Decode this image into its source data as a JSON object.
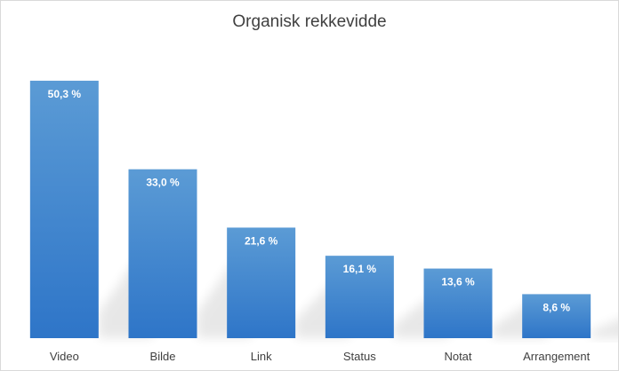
{
  "chart_data": {
    "type": "bar",
    "title": "Organisk rekkevidde",
    "categories": [
      "Video",
      "Bilde",
      "Link",
      "Status",
      "Notat",
      "Arrangement"
    ],
    "values": [
      50.3,
      33.0,
      21.6,
      16.1,
      13.6,
      8.6
    ],
    "data_labels": [
      "50,3 %",
      "33,0 %",
      "21,6 %",
      "16,1 %",
      "13,6 %",
      "8,6 %"
    ],
    "xlabel": "",
    "ylabel": "",
    "ylim": [
      0,
      60
    ],
    "grid": false,
    "legend": "none",
    "bar_color_top": "#5b9bd5",
    "bar_color_bottom": "#2e75c8"
  }
}
